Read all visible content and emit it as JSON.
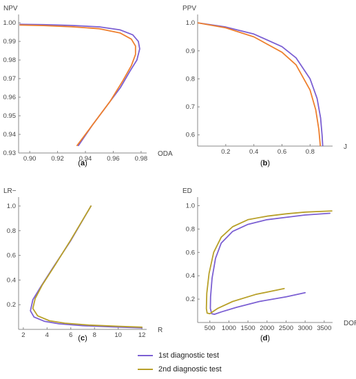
{
  "colors": {
    "series1": "#7b5fd3",
    "series2": "#b8a028",
    "series2_top": "#ee7f2d"
  },
  "legend": {
    "items": [
      "1st diagnostic test",
      "2nd diagnostic test"
    ]
  },
  "chart_data": [
    {
      "panel_label": "a",
      "type": "line",
      "xlabel": "ODA",
      "ylabel": "NPV",
      "xlim": [
        0.892,
        0.984
      ],
      "ylim": [
        0.93,
        1.003
      ],
      "xticks": [
        0.9,
        0.92,
        0.94,
        0.96,
        0.98
      ],
      "xtick_labels": [
        "0.90",
        "0.92",
        "0.94",
        "0.96",
        "0.98"
      ],
      "yticks": [
        0.93,
        0.94,
        0.95,
        0.96,
        0.97,
        0.98,
        0.99,
        1.0
      ],
      "ytick_labels": [
        "0.93",
        "0.94",
        "0.95",
        "0.96",
        "0.97",
        "0.98",
        "0.99",
        "1.00"
      ],
      "series": [
        {
          "points": [
            [
              0.893,
              0.9992
            ],
            [
              0.91,
              0.999
            ],
            [
              0.93,
              0.9986
            ],
            [
              0.95,
              0.9978
            ],
            [
              0.965,
              0.9962
            ],
            [
              0.974,
              0.9935
            ],
            [
              0.978,
              0.99
            ],
            [
              0.979,
              0.986
            ],
            [
              0.977,
              0.98
            ],
            [
              0.972,
              0.974
            ],
            [
              0.965,
              0.965
            ],
            [
              0.955,
              0.955
            ],
            [
              0.945,
              0.945
            ],
            [
              0.935,
              0.934
            ]
          ]
        },
        {
          "points": [
            [
              0.893,
              0.9988
            ],
            [
              0.91,
              0.9985
            ],
            [
              0.93,
              0.9979
            ],
            [
              0.95,
              0.9968
            ],
            [
              0.965,
              0.9945
            ],
            [
              0.973,
              0.9912
            ],
            [
              0.976,
              0.9875
            ],
            [
              0.976,
              0.983
            ],
            [
              0.973,
              0.977
            ],
            [
              0.967,
              0.969
            ],
            [
              0.958,
              0.958
            ],
            [
              0.946,
              0.946
            ],
            [
              0.934,
              0.934
            ]
          ]
        }
      ]
    },
    {
      "panel_label": "b",
      "type": "line",
      "xlabel": "J",
      "ylabel": "PPV",
      "xlim": [
        0.0,
        0.96
      ],
      "ylim": [
        0.56,
        1.02
      ],
      "xticks": [
        0.2,
        0.4,
        0.6,
        0.8
      ],
      "xtick_labels": [
        "0.2",
        "0.4",
        "0.6",
        "0.8"
      ],
      "yticks": [
        0.6,
        0.7,
        0.8,
        0.9,
        1.0
      ],
      "ytick_labels": [
        "0.6",
        "0.7",
        "0.8",
        "0.9",
        "1.0"
      ],
      "series": [
        {
          "points": [
            [
              0.0,
              1.0
            ],
            [
              0.2,
              0.985
            ],
            [
              0.4,
              0.96
            ],
            [
              0.6,
              0.915
            ],
            [
              0.7,
              0.875
            ],
            [
              0.8,
              0.8
            ],
            [
              0.85,
              0.73
            ],
            [
              0.875,
              0.66
            ],
            [
              0.885,
              0.6
            ],
            [
              0.89,
              0.56
            ]
          ]
        },
        {
          "points": [
            [
              0.0,
              1.0
            ],
            [
              0.2,
              0.982
            ],
            [
              0.4,
              0.95
            ],
            [
              0.6,
              0.895
            ],
            [
              0.7,
              0.85
            ],
            [
              0.8,
              0.76
            ],
            [
              0.84,
              0.69
            ],
            [
              0.862,
              0.62
            ],
            [
              0.873,
              0.56
            ]
          ]
        }
      ]
    },
    {
      "panel_label": "c",
      "type": "line",
      "xlabel": "R",
      "ylabel": "LR−",
      "xlim": [
        1.6,
        12.4
      ],
      "ylim": [
        0.0,
        1.05
      ],
      "xticks": [
        2,
        4,
        6,
        8,
        10,
        12
      ],
      "xtick_labels": [
        "2",
        "4",
        "6",
        "8",
        "10",
        "12"
      ],
      "yticks": [
        0.2,
        0.4,
        0.6,
        0.8,
        1.0
      ],
      "ytick_labels": [
        "0.2",
        "0.4",
        "0.6",
        "0.8",
        "1.0"
      ],
      "series": [
        {
          "points": [
            [
              7.7,
              1.0
            ],
            [
              6.0,
              0.72
            ],
            [
              4.5,
              0.5
            ],
            [
              3.5,
              0.35
            ],
            [
              2.8,
              0.24
            ],
            [
              2.6,
              0.15
            ],
            [
              2.9,
              0.1
            ],
            [
              3.8,
              0.065
            ],
            [
              5.0,
              0.045
            ],
            [
              7.0,
              0.03
            ],
            [
              9.5,
              0.02
            ],
            [
              12.0,
              0.012
            ]
          ]
        },
        {
          "points": [
            [
              7.7,
              1.0
            ],
            [
              6.0,
              0.725
            ],
            [
              4.6,
              0.51
            ],
            [
              3.6,
              0.36
            ],
            [
              3.0,
              0.25
            ],
            [
              2.8,
              0.17
            ],
            [
              3.2,
              0.11
            ],
            [
              4.2,
              0.07
            ],
            [
              5.5,
              0.05
            ],
            [
              7.5,
              0.035
            ],
            [
              10.0,
              0.025
            ],
            [
              12.0,
              0.018
            ]
          ]
        }
      ]
    },
    {
      "panel_label": "d",
      "type": "line",
      "xlabel": "DOR",
      "ylabel": "ED",
      "xlim": [
        180,
        3720
      ],
      "ylim": [
        0.0,
        1.05
      ],
      "xticks": [
        500,
        1000,
        1500,
        2000,
        2500,
        3000,
        3500
      ],
      "xtick_labels": [
        "500",
        "1000",
        "1500",
        "2000",
        "2500",
        "3000",
        "3500"
      ],
      "yticks": [
        0.2,
        0.4,
        0.6,
        0.8,
        1.0
      ],
      "ytick_labels": [
        "0.2",
        "0.4",
        "0.6",
        "0.8",
        "1.0"
      ],
      "series": [
        {
          "points": [
            [
              3650,
              0.935
            ],
            [
              3000,
              0.92
            ],
            [
              2500,
              0.9
            ],
            [
              2000,
              0.88
            ],
            [
              1500,
              0.84
            ],
            [
              1100,
              0.78
            ],
            [
              800,
              0.68
            ],
            [
              650,
              0.55
            ],
            [
              560,
              0.38
            ],
            [
              520,
              0.22
            ],
            [
              515,
              0.12
            ],
            [
              550,
              0.075
            ],
            [
              620,
              0.07
            ],
            [
              800,
              0.09
            ],
            [
              1200,
              0.13
            ],
            [
              1800,
              0.18
            ],
            [
              2500,
              0.22
            ],
            [
              3000,
              0.255
            ]
          ]
        },
        {
          "points": [
            [
              3700,
              0.955
            ],
            [
              3000,
              0.945
            ],
            [
              2500,
              0.93
            ],
            [
              2000,
              0.91
            ],
            [
              1500,
              0.88
            ],
            [
              1100,
              0.82
            ],
            [
              800,
              0.73
            ],
            [
              600,
              0.6
            ],
            [
              480,
              0.42
            ],
            [
              420,
              0.25
            ],
            [
              410,
              0.12
            ],
            [
              430,
              0.08
            ],
            [
              500,
              0.075
            ],
            [
              700,
              0.12
            ],
            [
              1100,
              0.18
            ],
            [
              1700,
              0.24
            ],
            [
              2450,
              0.29
            ]
          ]
        }
      ]
    }
  ]
}
